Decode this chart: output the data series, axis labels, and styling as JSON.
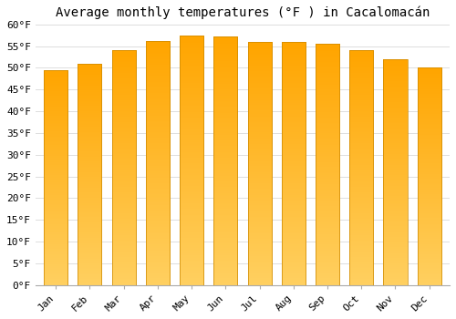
{
  "title": "Average monthly temperatures (°F ) in Cacalomacán",
  "months": [
    "Jan",
    "Feb",
    "Mar",
    "Apr",
    "May",
    "Jun",
    "Jul",
    "Aug",
    "Sep",
    "Oct",
    "Nov",
    "Dec"
  ],
  "values": [
    49.5,
    51.0,
    54.0,
    56.2,
    57.5,
    57.2,
    56.0,
    56.0,
    55.5,
    54.0,
    52.0,
    50.0
  ],
  "bar_color_bottom": "#FFD060",
  "bar_color_top": "#FFA500",
  "bar_color_edge": "#CC8800",
  "ylim": [
    0,
    60
  ],
  "yticks": [
    0,
    5,
    10,
    15,
    20,
    25,
    30,
    35,
    40,
    45,
    50,
    55,
    60
  ],
  "background_color": "#FFFFFF",
  "grid_color": "#DDDDDD",
  "title_fontsize": 10,
  "tick_fontsize": 8,
  "font_family": "monospace"
}
